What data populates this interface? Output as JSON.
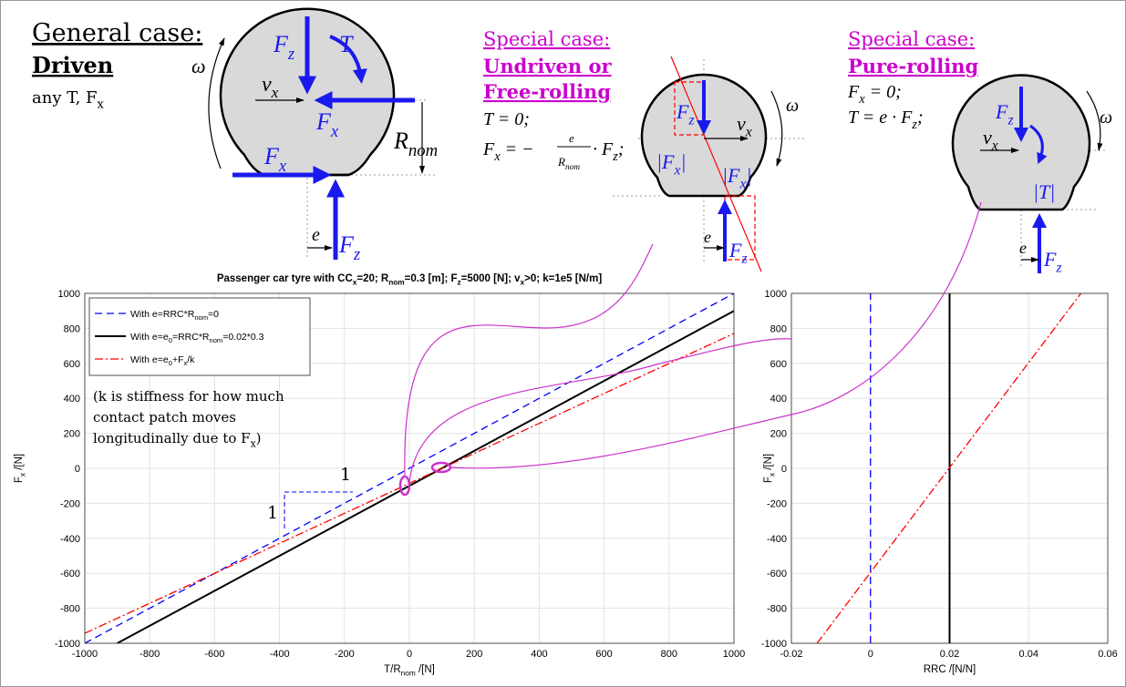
{
  "diagrams": [
    {
      "heading": "General case:",
      "title": [
        "Driven"
      ],
      "lines": [
        [
          "any T, F",
          "x"
        ]
      ],
      "symbols": [
        [
          "ω"
        ],
        [
          "F",
          "z"
        ],
        [
          "T"
        ],
        [
          "v",
          "x"
        ],
        [
          "F",
          "x"
        ],
        [
          "F",
          "x"
        ],
        [
          "R",
          "nom"
        ],
        [
          "e"
        ],
        [
          "F",
          "z"
        ]
      ]
    },
    {
      "heading": "Special case:",
      "title": [
        "Undriven or",
        "Free-rolling"
      ],
      "lines": [
        [
          "T = 0;"
        ],
        [
          "F",
          "x",
          " = −",
          "e",
          "R",
          "nom",
          " · F",
          "z",
          ";"
        ]
      ],
      "symbols": [
        [
          "F",
          "z"
        ],
        [
          "v",
          "x"
        ],
        [
          "ω"
        ],
        [
          "|F",
          "x",
          "|"
        ],
        [
          "|F",
          "x",
          "|"
        ],
        [
          "e"
        ],
        [
          "F",
          "z"
        ]
      ]
    },
    {
      "heading": "Special case:",
      "title": [
        "Pure-rolling"
      ],
      "lines": [
        [
          "F",
          "x",
          " = 0;"
        ],
        [
          "T = e · F",
          "z",
          ";"
        ]
      ],
      "symbols": [
        [
          "F",
          "z"
        ],
        [
          "v",
          "x"
        ],
        [
          "ω"
        ],
        [
          "|T|"
        ],
        [
          "e"
        ],
        [
          "F",
          "z"
        ]
      ]
    }
  ],
  "chart_data": [
    {
      "type": "line",
      "title": [
        "Passenger car tyre with CC",
        "x",
        "=20; R",
        "nom",
        "=0.3 [m]; F",
        "z",
        "=5000 [N]; v",
        "x",
        ">0; k=1e5 [N/m]"
      ],
      "xlabel": [
        "T/R",
        "nom",
        " /[N]"
      ],
      "ylabel": [
        "F",
        "x",
        " /[N]"
      ],
      "xlim": [
        -1000,
        1000
      ],
      "ylim": [
        -1000,
        1000
      ],
      "xticks": [
        -1000,
        -800,
        -600,
        -400,
        -200,
        0,
        200,
        400,
        600,
        800,
        1000
      ],
      "yticks": [
        -1000,
        -800,
        -600,
        -400,
        -200,
        0,
        200,
        400,
        600,
        800,
        1000
      ],
      "grid": true,
      "legend": "upper left",
      "series": [
        {
          "name": [
            "With e=RRC*R",
            "nom",
            "=0"
          ],
          "color": "#0000ff",
          "dash": "dashed",
          "x": [
            -1000,
            1000
          ],
          "values": [
            -1000,
            1000
          ]
        },
        {
          "name": [
            "With e=e",
            "0",
            "=RRC*R",
            "nom",
            "=0.02*0.3"
          ],
          "color": "#000000",
          "dash": "solid",
          "x": [
            -900,
            1000
          ],
          "values": [
            -1000,
            900
          ]
        },
        {
          "name": [
            "With e=e",
            "0",
            "+F",
            "x",
            "/k"
          ],
          "color": "#ff0000",
          "dash": "dashdot",
          "x": [
            -1000,
            1000
          ],
          "values": [
            -943,
            771
          ]
        }
      ],
      "annotations": [
        [
          "(k is stiffness for how much"
        ],
        [
          "contact patch moves"
        ],
        [
          "longitudinally due to F",
          "x",
          ")"
        ],
        [
          "1"
        ],
        [
          "1"
        ]
      ]
    },
    {
      "type": "line",
      "xlabel": [
        "RRC /[N/N]"
      ],
      "ylabel": [
        "F",
        "x",
        " /[N]"
      ],
      "xlim": [
        -0.02,
        0.06
      ],
      "ylim": [
        -1000,
        1000
      ],
      "xticks": [
        -0.02,
        0,
        0.02,
        0.04,
        0.06
      ],
      "yticks": [
        -1000,
        -800,
        -600,
        -400,
        -200,
        0,
        200,
        400,
        600,
        800,
        1000
      ],
      "grid": true,
      "series": [
        {
          "color": "#0000ff",
          "dash": "dashed",
          "x": [
            0,
            0
          ],
          "values": [
            -1000,
            1000
          ]
        },
        {
          "color": "#000000",
          "dash": "solid",
          "x": [
            0.02,
            0.02
          ],
          "values": [
            -1000,
            1000
          ]
        },
        {
          "color": "#ff0000",
          "dash": "dashdot",
          "x": [
            -0.0135,
            0.0532
          ],
          "values": [
            -1000,
            1000
          ]
        }
      ]
    }
  ]
}
